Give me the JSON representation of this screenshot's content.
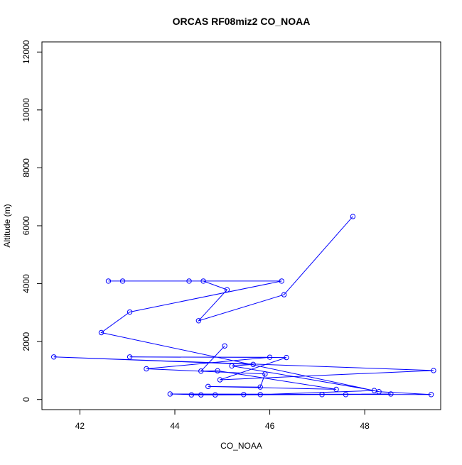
{
  "chart_data": {
    "type": "line",
    "title": "ORCAS RF08miz2 CO_NOAA",
    "xlabel": "CO_NOAA",
    "ylabel": "Altitude (m)",
    "xlim": [
      41.2,
      49.6
    ],
    "ylim": [
      -350,
      12350
    ],
    "xticks": [
      42,
      44,
      46,
      48
    ],
    "yticks": [
      0,
      2000,
      4000,
      6000,
      8000,
      10000,
      12000
    ],
    "grid": false,
    "legend": "none",
    "series": [
      {
        "color": "#0000ff",
        "marker": "open-circle",
        "points": [
          {
            "x": 47.75,
            "y": 6320
          },
          {
            "x": 46.3,
            "y": 3620
          },
          {
            "x": 44.5,
            "y": 2720
          },
          {
            "x": 45.1,
            "y": 3790
          },
          {
            "x": 44.6,
            "y": 4090
          },
          {
            "x": 44.3,
            "y": 4090
          },
          {
            "x": 42.9,
            "y": 4090
          },
          {
            "x": 42.6,
            "y": 4090
          },
          {
            "x": 46.25,
            "y": 4090
          },
          {
            "x": 43.05,
            "y": 3020
          },
          {
            "x": 42.45,
            "y": 2310
          },
          {
            "x": 48.3,
            "y": 270
          },
          {
            "x": 49.4,
            "y": 170
          },
          {
            "x": 43.9,
            "y": 190
          },
          {
            "x": 44.55,
            "y": 160
          },
          {
            "x": 44.85,
            "y": 160
          },
          {
            "x": 47.1,
            "y": 170
          },
          {
            "x": 47.6,
            "y": 170
          },
          {
            "x": 48.55,
            "y": 190
          },
          {
            "x": 44.35,
            "y": 160
          },
          {
            "x": 45.45,
            "y": 170
          },
          {
            "x": 45.8,
            "y": 170
          },
          {
            "x": 48.2,
            "y": 310
          },
          {
            "x": 45.2,
            "y": 1160
          },
          {
            "x": 45.65,
            "y": 1210
          },
          {
            "x": 41.45,
            "y": 1470
          },
          {
            "x": 49.45,
            "y": 1000
          },
          {
            "x": 44.95,
            "y": 680
          },
          {
            "x": 46.35,
            "y": 1450
          },
          {
            "x": 43.05,
            "y": 1470
          },
          {
            "x": 46.0,
            "y": 1460
          },
          {
            "x": 43.4,
            "y": 1060
          },
          {
            "x": 45.9,
            "y": 880
          },
          {
            "x": 45.8,
            "y": 430
          },
          {
            "x": 44.7,
            "y": 450
          },
          {
            "x": 47.4,
            "y": 350
          },
          {
            "x": 44.9,
            "y": 990
          },
          {
            "x": 44.55,
            "y": 980
          },
          {
            "x": 45.05,
            "y": 1850
          }
        ]
      }
    ]
  }
}
